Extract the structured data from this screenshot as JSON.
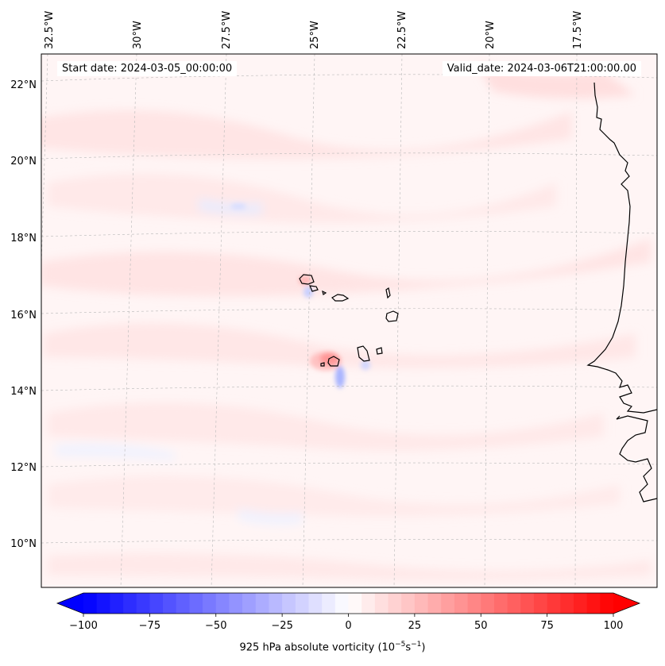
{
  "header": {
    "start_date": "Start date: 2024-03-05_00:00:00",
    "valid_date": "Valid_date: 2024-03-06T21:00:00.00"
  },
  "map": {
    "longitude_labels": [
      "32.5°W",
      "30°W",
      "27.5°W",
      "25°W",
      "22.5°W",
      "20°W",
      "17.5°W"
    ],
    "latitude_labels": [
      "22°N",
      "20°N",
      "18°N",
      "16°N",
      "14°N",
      "12°N",
      "10°N"
    ],
    "field": "925 hPa absolute vorticity",
    "colormap": "bwr",
    "colors": {
      "negative": "#0000ff",
      "zero": "#ffffff",
      "positive": "#ff0000",
      "coastline": "#000000",
      "gridline": "#b0b0b0"
    }
  },
  "colorbar": {
    "ticks": [
      "−100",
      "−75",
      "−50",
      "−25",
      "0",
      "25",
      "50",
      "75",
      "100"
    ],
    "tick_values": [
      -100,
      -75,
      -50,
      -25,
      0,
      25,
      50,
      75,
      100
    ],
    "min": -100,
    "max": 100,
    "levels": 41,
    "label_prefix": "925 hPa absolute vorticity (10",
    "label_exp1": "−5",
    "label_mid": "s",
    "label_exp2": "−1",
    "label_suffix": ")"
  }
}
